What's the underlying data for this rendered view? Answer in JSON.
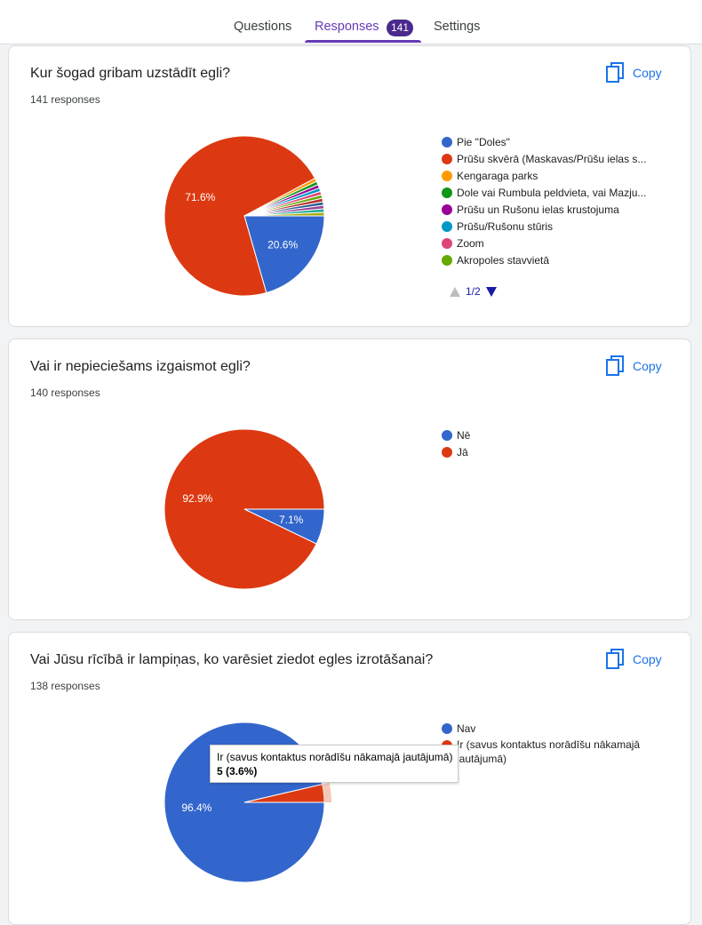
{
  "tabs": {
    "questions": "Questions",
    "responses": "Responses",
    "responses_badge": "141",
    "settings": "Settings"
  },
  "copy_label": "Copy",
  "questions": [
    {
      "title": "Kur šogad gribam uzstādīt egli?",
      "count": "141 responses",
      "legend": [
        {
          "label": "Pie \"Doles\"",
          "color": "#3366cc"
        },
        {
          "label": "Prūšu skvērā (Maskavas/Prūšu ielas s...",
          "color": "#dc3912"
        },
        {
          "label": "Kengaraga parks",
          "color": "#ff9900"
        },
        {
          "label": "Dole vai Rumbula peldvieta, vai Mazju...",
          "color": "#109618"
        },
        {
          "label": "Prūšu un Rušonu ielas krustojuma",
          "color": "#990099"
        },
        {
          "label": "Prūšu/Rušonu stūris",
          "color": "#0099c6"
        },
        {
          "label": "Zoom",
          "color": "#dd4477"
        },
        {
          "label": "Akropoles stavvietā",
          "color": "#66aa00"
        }
      ],
      "pager": "1/2"
    },
    {
      "title": "Vai ir nepieciešams izgaismot egli?",
      "count": "140 responses",
      "legend": [
        {
          "label": "Nē",
          "color": "#3366cc"
        },
        {
          "label": "Jā",
          "color": "#dc3912"
        }
      ]
    },
    {
      "title": "Vai Jūsu rīcībā ir lampiņas, ko varēsiet ziedot egles izrotāšanai?",
      "count": "138 responses",
      "legend": [
        {
          "label": "Nav",
          "color": "#3366cc"
        },
        {
          "label": "Ir (savus kontaktus norādīšu nākamajā jautājumā)",
          "color": "#dc3912"
        }
      ],
      "tooltip": {
        "label": "Ir (savus kontaktus norādīšu nākamajā jautājumā)",
        "value": "5 (3.6%)"
      }
    }
  ],
  "chart_data": [
    {
      "type": "pie",
      "labels": [
        "Pie \"Doles\"",
        "Prūšu skvērā (Maskavas/Prūšu ielas s...",
        "Kengaraga parks",
        "Dole vai Rumbula peldvieta, vai Mazju...",
        "Prūšu un Rušonu ielas krustojuma",
        "Prūšu/Rušonu stūris",
        "Zoom",
        "Akropoles stavvietā",
        "",
        "",
        "",
        "",
        "",
        ""
      ],
      "values": [
        29,
        101,
        1,
        1,
        1,
        1,
        1,
        1,
        1,
        1,
        1,
        1,
        1,
        0
      ],
      "colors": [
        "#3366cc",
        "#dc3912",
        "#ff9900",
        "#109618",
        "#990099",
        "#0099c6",
        "#dd4477",
        "#66aa00",
        "#b82e2e",
        "#316395",
        "#994499",
        "#22aa99",
        "#aaaa11",
        "#6633cc"
      ],
      "slice_labels": [
        "20.6%",
        "71.6%",
        "",
        "",
        "",
        "",
        "",
        "",
        "",
        "",
        "",
        "",
        "",
        ""
      ]
    },
    {
      "type": "pie",
      "labels": [
        "Nē",
        "Jā"
      ],
      "values": [
        10,
        130
      ],
      "colors": [
        "#3366cc",
        "#dc3912"
      ],
      "slice_labels": [
        "7.1%",
        "92.9%"
      ]
    },
    {
      "type": "pie",
      "labels": [
        "Nav",
        "Ir (savus kontaktus norādīšu nākamajā jautājumā)"
      ],
      "values": [
        133,
        5
      ],
      "colors": [
        "#3366cc",
        "#dc3912"
      ],
      "slice_labels": [
        "96.4%",
        ""
      ],
      "highlighted": 1
    }
  ]
}
